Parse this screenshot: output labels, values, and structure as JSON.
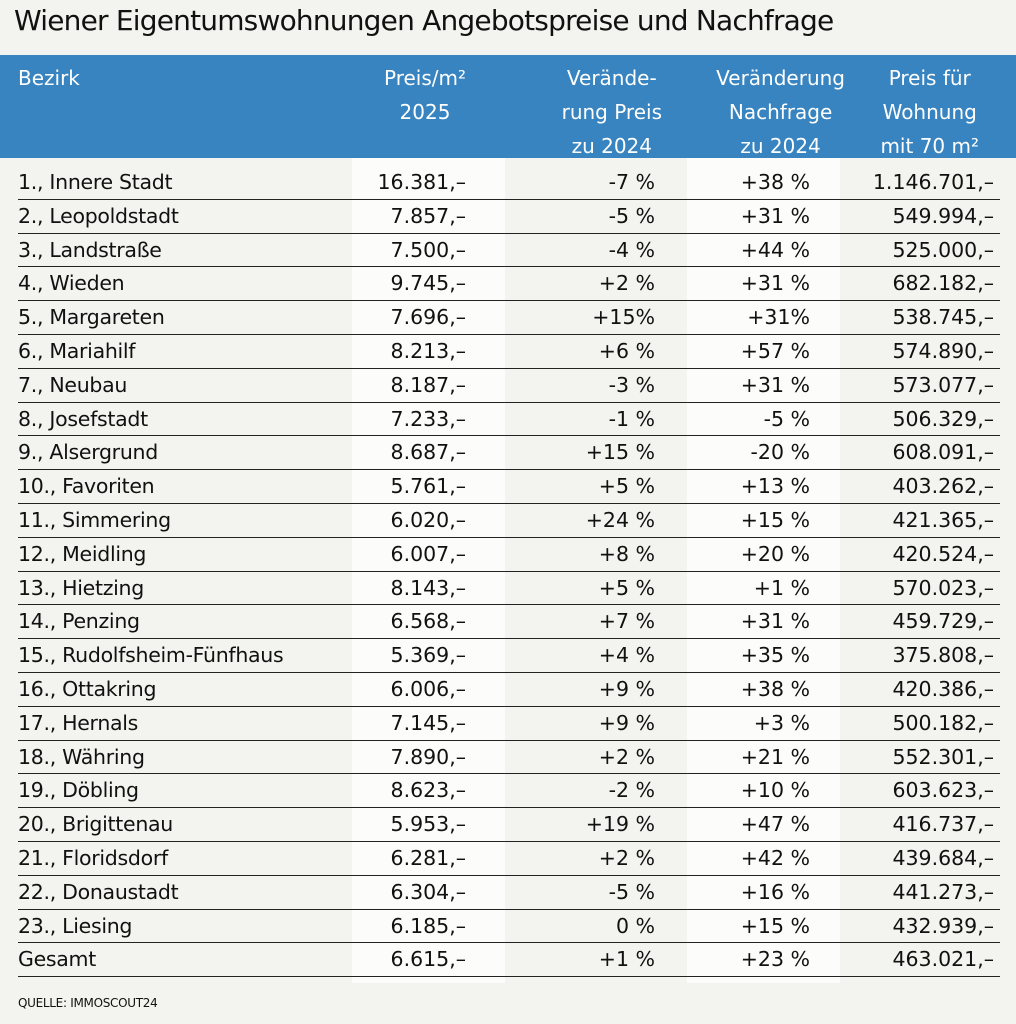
{
  "title": "Wiener Eigentumswohnungen Angebotspreise und Nachfrage",
  "colors": {
    "header": "#3784c0",
    "background": "#f3f3ef",
    "band": "#fcfcfa"
  },
  "chart_data": {
    "type": "table",
    "columns": [
      [
        "Bezirk"
      ],
      [
        "Preis/m²",
        "2025"
      ],
      [
        "Verände-",
        "rung Preis",
        "zu 2024"
      ],
      [
        "Veränderung",
        "Nachfrage",
        "zu 2024"
      ],
      [
        "Preis für",
        "Wohnung",
        "mit 70 m²"
      ]
    ],
    "rows": [
      [
        "1., Innere Stadt",
        "16.381,–",
        "-7 %",
        "+38 %",
        "1.146.701,–"
      ],
      [
        "2., Leopoldstadt",
        "7.857,–",
        "-5 %",
        "+31 %",
        "549.994,–"
      ],
      [
        "3., Landstraße",
        "7.500,–",
        "-4 %",
        "+44 %",
        "525.000,–"
      ],
      [
        "4., Wieden",
        "9.745,–",
        "+2 %",
        "+31 %",
        "682.182,–"
      ],
      [
        "5., Margareten",
        "7.696,–",
        "+15%",
        "+31%",
        "538.745,–"
      ],
      [
        "6., Mariahilf",
        "8.213,–",
        "+6 %",
        "+57 %",
        "574.890,–"
      ],
      [
        "7., Neubau",
        "8.187,–",
        "-3 %",
        "+31 %",
        "573.077,–"
      ],
      [
        "8., Josefstadt",
        "7.233,–",
        "-1 %",
        "-5 %",
        "506.329,–"
      ],
      [
        "9., Alsergrund",
        "8.687,–",
        "+15 %",
        "-20 %",
        "608.091,–"
      ],
      [
        "10., Favoriten",
        "5.761,–",
        "+5 %",
        "+13 %",
        "403.262,–"
      ],
      [
        "11., Simmering",
        "6.020,–",
        "+24 %",
        "+15 %",
        "421.365,–"
      ],
      [
        "12., Meidling",
        "6.007,–",
        "+8 %",
        "+20 %",
        "420.524,–"
      ],
      [
        "13., Hietzing",
        "8.143,–",
        "+5 %",
        "+1 %",
        "570.023,–"
      ],
      [
        "14., Penzing",
        "6.568,–",
        "+7 %",
        "+31 %",
        "459.729,–"
      ],
      [
        "15., Rudolfsheim-Fünfhaus",
        "5.369,–",
        "+4 %",
        "+35 %",
        "375.808,–"
      ],
      [
        "16., Ottakring",
        "6.006,–",
        "+9 %",
        "+38 %",
        "420.386,–"
      ],
      [
        "17., Hernals",
        "7.145,–",
        "+9 %",
        "+3 %",
        "500.182,–"
      ],
      [
        "18., Währing",
        "7.890,–",
        "+2 %",
        "+21 %",
        "552.301,–"
      ],
      [
        "19., Döbling",
        "8.623,–",
        "-2 %",
        "+10 %",
        "603.623,–"
      ],
      [
        "20., Brigittenau",
        "5.953,–",
        "+19 %",
        "+47 %",
        "416.737,–"
      ],
      [
        "21., Floridsdorf",
        "6.281,–",
        "+2 %",
        "+42 %",
        "439.684,–"
      ],
      [
        "22., Donaustadt",
        "6.304,–",
        "-5 %",
        "+16 %",
        "441.273,–"
      ],
      [
        "23., Liesing",
        "6.185,–",
        "0 %",
        "+15 %",
        "432.939,–"
      ],
      [
        "Gesamt",
        "6.615,–",
        "+1 %",
        "+23 %",
        "463.021,–"
      ]
    ],
    "source": "QUELLE: IMMOSCOUT24"
  }
}
